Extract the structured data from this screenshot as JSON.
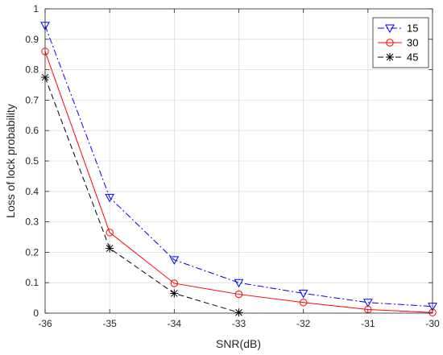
{
  "chart_data": {
    "type": "line",
    "title": "",
    "xlabel": "SNR(dB)",
    "ylabel": "Loss of lock probability",
    "xlim": [
      -36,
      -30
    ],
    "ylim": [
      0,
      1
    ],
    "xticks": [
      -36,
      -35,
      -34,
      -33,
      -32,
      -31,
      -30
    ],
    "yticks": [
      0,
      0.1,
      0.2,
      0.3,
      0.4,
      0.5,
      0.6,
      0.7,
      0.8,
      0.9,
      1
    ],
    "xtick_labels": [
      "-36",
      "-35",
      "-34",
      "-33",
      "-32",
      "-31",
      "-30"
    ],
    "ytick_labels": [
      "0",
      "0.1",
      "0.2",
      "0.3",
      "0.4",
      "0.5",
      "0.6",
      "0.7",
      "0.8",
      "0.9",
      "1"
    ],
    "grid": true,
    "legend_position": "top-right",
    "series": [
      {
        "name": "15",
        "color": "#0000ff",
        "line_style": "dash-dot",
        "marker": "triangle-down",
        "x": [
          -36,
          -35,
          -34,
          -33,
          -32,
          -31,
          -30
        ],
        "y": [
          0.945,
          0.38,
          0.175,
          0.1,
          0.065,
          0.035,
          0.022
        ]
      },
      {
        "name": "30",
        "color": "#ff0000",
        "line_style": "solid",
        "marker": "circle",
        "x": [
          -36,
          -35,
          -34,
          -33,
          -32,
          -31,
          -30
        ],
        "y": [
          0.86,
          0.265,
          0.098,
          0.062,
          0.035,
          0.012,
          0.002
        ]
      },
      {
        "name": "45",
        "color": "#000000",
        "line_style": "dashed",
        "marker": "star",
        "x": [
          -36,
          -35,
          -34,
          -33
        ],
        "y": [
          0.775,
          0.213,
          0.065,
          0.002
        ]
      }
    ]
  }
}
